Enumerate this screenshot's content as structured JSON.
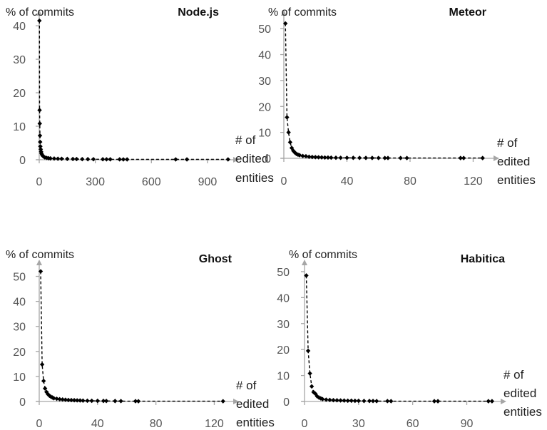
{
  "colors": {
    "axis": "#a6a6a6",
    "series": "#000000",
    "tick_text": "#555555"
  },
  "chart_data": [
    {
      "type": "line",
      "title": "Node.js",
      "ylabel": "% of commits",
      "xlabel_lines": [
        "# of",
        "edited",
        "entities"
      ],
      "xlim": [
        0,
        1030
      ],
      "ylim": [
        0,
        43
      ],
      "xticks": [
        0,
        300,
        600,
        900
      ],
      "yticks": [
        0,
        10,
        20,
        30,
        40
      ],
      "marker": "diamond",
      "line_style": "dashed",
      "x": [
        1,
        2,
        3,
        4,
        5,
        6,
        8,
        10,
        12,
        15,
        20,
        25,
        30,
        40,
        50,
        60,
        80,
        100,
        120,
        150,
        180,
        200,
        230,
        260,
        290,
        340,
        360,
        380,
        430,
        450,
        470,
        730,
        790,
        1010
      ],
      "y": [
        41.5,
        14.8,
        10.8,
        7.2,
        5.3,
        4.0,
        3.1,
        2.4,
        1.9,
        1.5,
        1.1,
        0.9,
        0.7,
        0.55,
        0.45,
        0.4,
        0.35,
        0.3,
        0.28,
        0.25,
        0.22,
        0.2,
        0.18,
        0.16,
        0.15,
        0.14,
        0.13,
        0.12,
        0.11,
        0.1,
        0.1,
        0.1,
        0.1,
        0.1
      ]
    },
    {
      "type": "line",
      "title": "Meteor",
      "ylabel": "% of commits",
      "xlabel_lines": [
        "# of",
        "edited",
        "entities"
      ],
      "xlim": [
        0,
        132
      ],
      "ylim": [
        0,
        55
      ],
      "xticks": [
        0,
        40,
        80,
        120
      ],
      "yticks": [
        0,
        10,
        20,
        30,
        40,
        50
      ],
      "marker": "diamond",
      "line_style": "dashed",
      "x": [
        1,
        2,
        3,
        4,
        5,
        6,
        7,
        8,
        9,
        10,
        12,
        14,
        16,
        18,
        20,
        22,
        24,
        26,
        28,
        30,
        33,
        36,
        40,
        44,
        48,
        52,
        56,
        60,
        64,
        66,
        74,
        78,
        112,
        114,
        126
      ],
      "y": [
        52,
        15.8,
        10,
        6.2,
        4.0,
        2.9,
        2.2,
        1.7,
        1.4,
        1.2,
        0.9,
        0.8,
        0.6,
        0.5,
        0.45,
        0.4,
        0.35,
        0.3,
        0.3,
        0.25,
        0.22,
        0.2,
        0.2,
        0.18,
        0.16,
        0.15,
        0.14,
        0.13,
        0.12,
        0.12,
        0.11,
        0.1,
        0.1,
        0.1,
        0.1
      ]
    },
    {
      "type": "line",
      "title": "Ghost",
      "ylabel": "% of commits",
      "xlabel_lines": [
        "# of",
        "edited",
        "entities"
      ],
      "xlim": [
        0,
        132
      ],
      "ylim": [
        0,
        55
      ],
      "xticks": [
        0,
        40,
        80,
        120
      ],
      "yticks": [
        0,
        10,
        20,
        30,
        40,
        50
      ],
      "marker": "diamond",
      "line_style": "dashed",
      "x": [
        1,
        2,
        3,
        4,
        5,
        6,
        7,
        8,
        9,
        10,
        12,
        14,
        16,
        18,
        20,
        22,
        24,
        26,
        28,
        30,
        33,
        36,
        40,
        44,
        46,
        52,
        56,
        66,
        68,
        126
      ],
      "y": [
        52,
        14.8,
        8.2,
        5.2,
        3.8,
        2.9,
        2.3,
        1.9,
        1.6,
        1.3,
        1.1,
        0.9,
        0.8,
        0.7,
        0.6,
        0.55,
        0.5,
        0.45,
        0.4,
        0.35,
        0.3,
        0.28,
        0.25,
        0.22,
        0.2,
        0.18,
        0.15,
        0.12,
        0.1,
        0.1
      ]
    },
    {
      "type": "line",
      "title": "Habitica",
      "ylabel": "% of commits",
      "xlabel_lines": [
        "# of",
        "edited",
        "entities"
      ],
      "xlim": [
        0,
        108
      ],
      "ylim": [
        0,
        53
      ],
      "xticks": [
        0,
        30,
        60,
        90
      ],
      "yticks": [
        0,
        10,
        20,
        30,
        40,
        50
      ],
      "marker": "diamond",
      "line_style": "dashed",
      "x": [
        1,
        2,
        3,
        4,
        5,
        6,
        7,
        8,
        9,
        10,
        12,
        14,
        16,
        18,
        20,
        22,
        24,
        26,
        28,
        30,
        33,
        36,
        38,
        40,
        46,
        48,
        72,
        74,
        102,
        104
      ],
      "y": [
        48.5,
        19.5,
        10.8,
        5.8,
        3.6,
        3.0,
        2.0,
        1.5,
        1.2,
        0.9,
        0.7,
        0.6,
        0.5,
        0.45,
        0.4,
        0.35,
        0.3,
        0.3,
        0.25,
        0.25,
        0.2,
        0.2,
        0.18,
        0.15,
        0.15,
        0.12,
        0.1,
        0.1,
        0.1,
        0.1
      ]
    }
  ]
}
